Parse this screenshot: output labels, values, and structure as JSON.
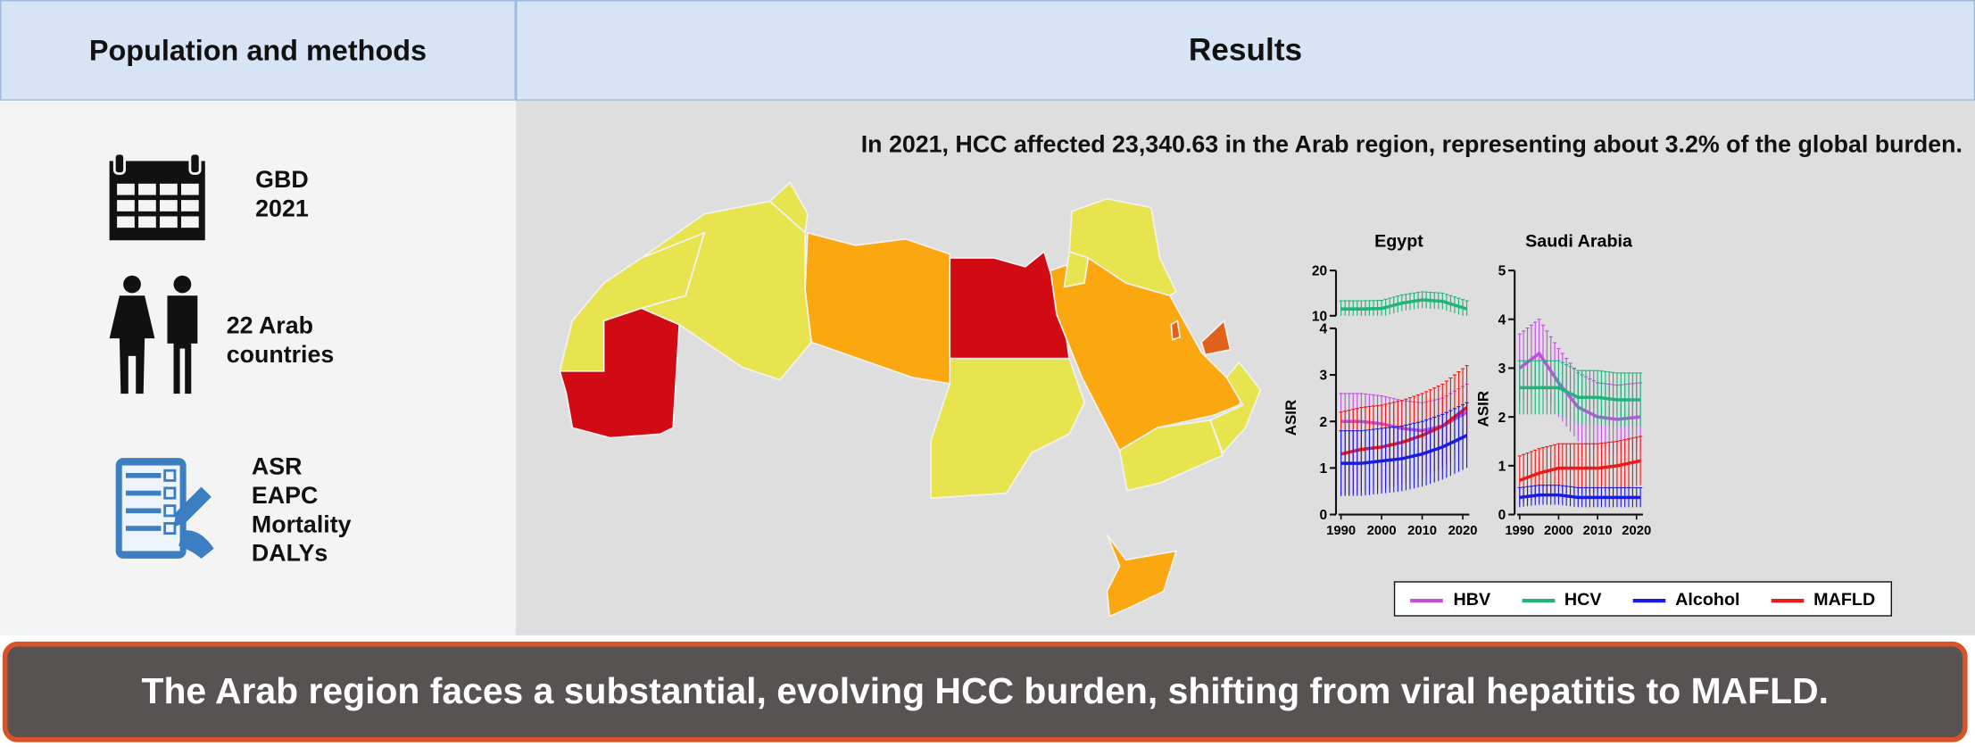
{
  "header": {
    "left_title": "Population and methods",
    "right_title": "Results"
  },
  "methods": [
    {
      "icon": "calendar-icon",
      "lines": [
        "GBD",
        "2021"
      ]
    },
    {
      "icon": "people-icon",
      "lines": [
        "22 Arab",
        "countries"
      ]
    },
    {
      "icon": "checklist-icon",
      "lines": [
        "ASR",
        "EAPC",
        "Mortality",
        "DALYs"
      ]
    }
  ],
  "results": {
    "headline": "In 2021, HCC affected 23,340.63 in the Arab region, representing about 3.2% of the global burden.",
    "map_colors": {
      "low": "#e8e44f",
      "mid": "#fba70f",
      "mid_high": "#e0621a",
      "high": "#d10a14"
    }
  },
  "legend": [
    {
      "name": "HBV",
      "color": "#c050e0"
    },
    {
      "name": "HCV",
      "color": "#1fb57a"
    },
    {
      "name": "Alcohol",
      "color": "#1a1ae6"
    },
    {
      "name": "MAFLD",
      "color": "#f01818"
    }
  ],
  "chart_data": [
    {
      "type": "line",
      "title": "Egypt",
      "ylabel": "ASIR",
      "x": [
        1990,
        1995,
        2000,
        2005,
        2010,
        2015,
        2021
      ],
      "xticks": [
        "1990",
        "2000",
        "2010",
        "2020"
      ],
      "upper_panel": {
        "ylim": [
          10,
          20
        ],
        "yticks": [
          "10",
          "20"
        ],
        "series": [
          {
            "name": "HCV",
            "values": [
              11.5,
              11.5,
              11.6,
              12.8,
              13.5,
              13.2,
              11.5
            ],
            "error": 1.8
          }
        ]
      },
      "lower_panel": {
        "ylim": [
          0,
          4
        ],
        "yticks": [
          "0",
          "1",
          "2",
          "3",
          "4"
        ],
        "series": [
          {
            "name": "HBV",
            "values": [
              2.0,
              2.0,
              1.95,
              1.85,
              1.8,
              1.9,
              2.2
            ],
            "error": 0.6
          },
          {
            "name": "MAFLD",
            "values": [
              1.3,
              1.4,
              1.45,
              1.55,
              1.7,
              1.9,
              2.3
            ],
            "error": 0.9
          },
          {
            "name": "Alcohol",
            "values": [
              1.1,
              1.1,
              1.15,
              1.2,
              1.3,
              1.45,
              1.7
            ],
            "error": 0.7
          }
        ]
      }
    },
    {
      "type": "line",
      "title": "Saudi Arabia",
      "ylabel": "ASIR",
      "x": [
        1990,
        1995,
        2000,
        2005,
        2010,
        2015,
        2021
      ],
      "xticks": [
        "1990",
        "2000",
        "2010",
        "2020"
      ],
      "ylim": [
        0,
        5
      ],
      "yticks": [
        "0",
        "1",
        "2",
        "3",
        "4",
        "5"
      ],
      "series": [
        {
          "name": "HBV",
          "values": [
            3.0,
            3.3,
            2.7,
            2.2,
            2.0,
            1.95,
            2.0
          ],
          "error": 0.7
        },
        {
          "name": "HCV",
          "values": [
            2.6,
            2.6,
            2.6,
            2.4,
            2.4,
            2.35,
            2.35
          ],
          "error": 0.55
        },
        {
          "name": "MAFLD",
          "values": [
            0.7,
            0.85,
            0.95,
            0.95,
            0.95,
            1.0,
            1.1
          ],
          "error": 0.5
        },
        {
          "name": "Alcohol",
          "values": [
            0.35,
            0.4,
            0.4,
            0.35,
            0.35,
            0.35,
            0.35
          ],
          "error": 0.2
        }
      ]
    }
  ],
  "conclusion": "The Arab region faces a substantial, evolving HCC burden, shifting from viral hepatitis to MAFLD."
}
